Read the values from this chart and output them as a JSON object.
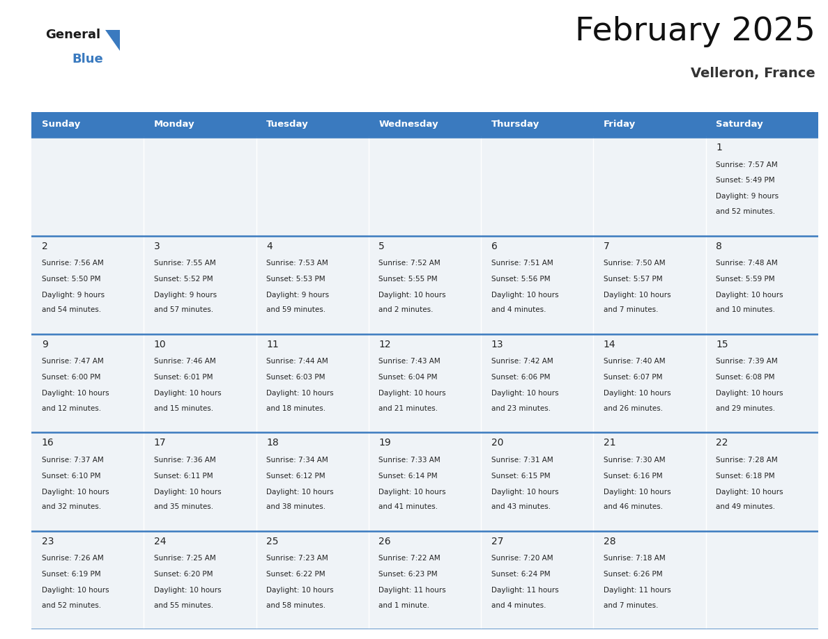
{
  "title": "February 2025",
  "subtitle": "Velleron, France",
  "header_color": "#3a7abf",
  "header_text_color": "#ffffff",
  "day_names": [
    "Sunday",
    "Monday",
    "Tuesday",
    "Wednesday",
    "Thursday",
    "Friday",
    "Saturday"
  ],
  "cell_bg_color": "#eff3f7",
  "border_color": "#3a7abf",
  "text_color": "#222222",
  "days": [
    {
      "day": 1,
      "col": 6,
      "row": 0,
      "sunrise": "7:57 AM",
      "sunset": "5:49 PM",
      "daylight": "9 hours and 52 minutes."
    },
    {
      "day": 2,
      "col": 0,
      "row": 1,
      "sunrise": "7:56 AM",
      "sunset": "5:50 PM",
      "daylight": "9 hours and 54 minutes."
    },
    {
      "day": 3,
      "col": 1,
      "row": 1,
      "sunrise": "7:55 AM",
      "sunset": "5:52 PM",
      "daylight": "9 hours and 57 minutes."
    },
    {
      "day": 4,
      "col": 2,
      "row": 1,
      "sunrise": "7:53 AM",
      "sunset": "5:53 PM",
      "daylight": "9 hours and 59 minutes."
    },
    {
      "day": 5,
      "col": 3,
      "row": 1,
      "sunrise": "7:52 AM",
      "sunset": "5:55 PM",
      "daylight": "10 hours and 2 minutes."
    },
    {
      "day": 6,
      "col": 4,
      "row": 1,
      "sunrise": "7:51 AM",
      "sunset": "5:56 PM",
      "daylight": "10 hours and 4 minutes."
    },
    {
      "day": 7,
      "col": 5,
      "row": 1,
      "sunrise": "7:50 AM",
      "sunset": "5:57 PM",
      "daylight": "10 hours and 7 minutes."
    },
    {
      "day": 8,
      "col": 6,
      "row": 1,
      "sunrise": "7:48 AM",
      "sunset": "5:59 PM",
      "daylight": "10 hours and 10 minutes."
    },
    {
      "day": 9,
      "col": 0,
      "row": 2,
      "sunrise": "7:47 AM",
      "sunset": "6:00 PM",
      "daylight": "10 hours and 12 minutes."
    },
    {
      "day": 10,
      "col": 1,
      "row": 2,
      "sunrise": "7:46 AM",
      "sunset": "6:01 PM",
      "daylight": "10 hours and 15 minutes."
    },
    {
      "day": 11,
      "col": 2,
      "row": 2,
      "sunrise": "7:44 AM",
      "sunset": "6:03 PM",
      "daylight": "10 hours and 18 minutes."
    },
    {
      "day": 12,
      "col": 3,
      "row": 2,
      "sunrise": "7:43 AM",
      "sunset": "6:04 PM",
      "daylight": "10 hours and 21 minutes."
    },
    {
      "day": 13,
      "col": 4,
      "row": 2,
      "sunrise": "7:42 AM",
      "sunset": "6:06 PM",
      "daylight": "10 hours and 23 minutes."
    },
    {
      "day": 14,
      "col": 5,
      "row": 2,
      "sunrise": "7:40 AM",
      "sunset": "6:07 PM",
      "daylight": "10 hours and 26 minutes."
    },
    {
      "day": 15,
      "col": 6,
      "row": 2,
      "sunrise": "7:39 AM",
      "sunset": "6:08 PM",
      "daylight": "10 hours and 29 minutes."
    },
    {
      "day": 16,
      "col": 0,
      "row": 3,
      "sunrise": "7:37 AM",
      "sunset": "6:10 PM",
      "daylight": "10 hours and 32 minutes."
    },
    {
      "day": 17,
      "col": 1,
      "row": 3,
      "sunrise": "7:36 AM",
      "sunset": "6:11 PM",
      "daylight": "10 hours and 35 minutes."
    },
    {
      "day": 18,
      "col": 2,
      "row": 3,
      "sunrise": "7:34 AM",
      "sunset": "6:12 PM",
      "daylight": "10 hours and 38 minutes."
    },
    {
      "day": 19,
      "col": 3,
      "row": 3,
      "sunrise": "7:33 AM",
      "sunset": "6:14 PM",
      "daylight": "10 hours and 41 minutes."
    },
    {
      "day": 20,
      "col": 4,
      "row": 3,
      "sunrise": "7:31 AM",
      "sunset": "6:15 PM",
      "daylight": "10 hours and 43 minutes."
    },
    {
      "day": 21,
      "col": 5,
      "row": 3,
      "sunrise": "7:30 AM",
      "sunset": "6:16 PM",
      "daylight": "10 hours and 46 minutes."
    },
    {
      "day": 22,
      "col": 6,
      "row": 3,
      "sunrise": "7:28 AM",
      "sunset": "6:18 PM",
      "daylight": "10 hours and 49 minutes."
    },
    {
      "day": 23,
      "col": 0,
      "row": 4,
      "sunrise": "7:26 AM",
      "sunset": "6:19 PM",
      "daylight": "10 hours and 52 minutes."
    },
    {
      "day": 24,
      "col": 1,
      "row": 4,
      "sunrise": "7:25 AM",
      "sunset": "6:20 PM",
      "daylight": "10 hours and 55 minutes."
    },
    {
      "day": 25,
      "col": 2,
      "row": 4,
      "sunrise": "7:23 AM",
      "sunset": "6:22 PM",
      "daylight": "10 hours and 58 minutes."
    },
    {
      "day": 26,
      "col": 3,
      "row": 4,
      "sunrise": "7:22 AM",
      "sunset": "6:23 PM",
      "daylight": "11 hours and 1 minute."
    },
    {
      "day": 27,
      "col": 4,
      "row": 4,
      "sunrise": "7:20 AM",
      "sunset": "6:24 PM",
      "daylight": "11 hours and 4 minutes."
    },
    {
      "day": 28,
      "col": 5,
      "row": 4,
      "sunrise": "7:18 AM",
      "sunset": "6:26 PM",
      "daylight": "11 hours and 7 minutes."
    }
  ]
}
